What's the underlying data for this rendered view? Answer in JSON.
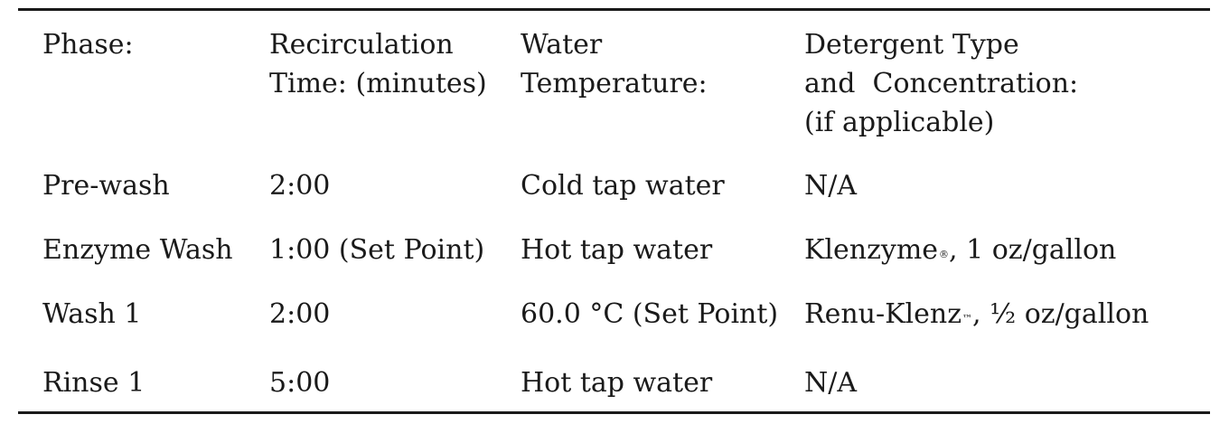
{
  "table": {
    "headers": [
      [
        "Phase:"
      ],
      [
        "Recirculation",
        "Time: (minutes)"
      ],
      [
        "Water",
        "Temperature:"
      ],
      [
        "Detergent Type",
        "and  Concentration:",
        "(if applicable)"
      ]
    ],
    "rows": [
      {
        "phase": "Pre-wash",
        "time": "2:00",
        "temperature": "Cold tap water",
        "detergent": "N/A",
        "detergent_mark": "",
        "detergent_rest": ""
      },
      {
        "phase": "Enzyme Wash",
        "time": "1:00 (Set Point)",
        "temperature": "Hot tap water",
        "detergent": "Klenzyme",
        "detergent_mark": "®",
        "detergent_rest": ", 1 oz/gallon"
      },
      {
        "phase": "Wash 1",
        "time": "2:00",
        "temperature": "60.0 °C (Set Point)",
        "detergent": "Renu-Klenz",
        "detergent_mark": "™",
        "detergent_rest": ", ½ oz/gallon"
      },
      {
        "phase": "Rinse 1",
        "time": "5:00",
        "temperature": "Hot tap water",
        "detergent": "N/A",
        "detergent_mark": "",
        "detergent_rest": ""
      }
    ]
  }
}
